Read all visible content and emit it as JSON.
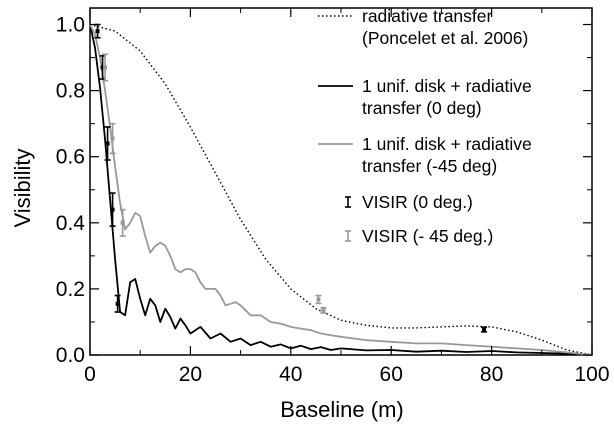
{
  "chart_data": {
    "type": "line",
    "xlabel": "Baseline (m)",
    "ylabel": "Visibility",
    "xlim": [
      0,
      100
    ],
    "ylim": [
      0,
      1.05
    ],
    "grid": false,
    "legend_position": "top-right",
    "x_ticks": [
      {
        "value": 0,
        "label": "0"
      },
      {
        "value": 20,
        "label": "20"
      },
      {
        "value": 40,
        "label": "40"
      },
      {
        "value": 60,
        "label": "60"
      },
      {
        "value": 80,
        "label": "80"
      },
      {
        "value": 100,
        "label": "100"
      }
    ],
    "y_ticks": [
      {
        "value": 0.0,
        "label": "0.0"
      },
      {
        "value": 0.2,
        "label": "0.2"
      },
      {
        "value": 0.4,
        "label": "0.4"
      },
      {
        "value": 0.6,
        "label": "0.6"
      },
      {
        "value": 0.8,
        "label": "0.8"
      },
      {
        "value": 1.0,
        "label": "1.0"
      }
    ],
    "series": [
      {
        "id": "radiative-transfer",
        "legend": [
          "radiative transfer",
          "(Poncelet et al. 2006)"
        ],
        "style": "dotted",
        "color": "#000000",
        "x": [
          0,
          5,
          10,
          15,
          20,
          25,
          30,
          35,
          40,
          45,
          50,
          55,
          60,
          65,
          70,
          75,
          80,
          85,
          90,
          95,
          100
        ],
        "y": [
          1.0,
          0.98,
          0.92,
          0.82,
          0.69,
          0.55,
          0.41,
          0.29,
          0.2,
          0.14,
          0.105,
          0.09,
          0.082,
          0.082,
          0.085,
          0.088,
          0.085,
          0.07,
          0.045,
          0.015,
          0.0
        ]
      },
      {
        "id": "disk-0deg",
        "legend": [
          "1 unif. disk + radiative",
          "transfer (0 deg)"
        ],
        "style": "solid",
        "color": "#000000",
        "x": [
          0,
          1,
          2,
          3,
          4,
          5,
          6,
          7,
          8,
          9,
          10,
          11,
          12,
          13,
          14,
          15,
          16,
          17,
          18,
          19,
          20,
          22,
          24,
          26,
          28,
          30,
          32,
          34,
          36,
          38,
          40,
          42,
          44,
          46,
          48,
          50,
          55,
          60,
          65,
          70,
          75,
          80,
          85,
          90,
          95,
          100
        ],
        "y": [
          1.0,
          0.93,
          0.81,
          0.65,
          0.47,
          0.29,
          0.13,
          0.12,
          0.22,
          0.23,
          0.17,
          0.12,
          0.17,
          0.15,
          0.1,
          0.14,
          0.115,
          0.08,
          0.11,
          0.09,
          0.065,
          0.085,
          0.05,
          0.065,
          0.04,
          0.05,
          0.03,
          0.04,
          0.025,
          0.032,
          0.02,
          0.028,
          0.018,
          0.024,
          0.015,
          0.02,
          0.014,
          0.015,
          0.01,
          0.013,
          0.009,
          0.012,
          0.008,
          0.006,
          0.004,
          0.0
        ]
      },
      {
        "id": "disk-45deg",
        "legend": [
          "1 unif. disk + radiative",
          "transfer (-45 deg)"
        ],
        "style": "solid",
        "color": "#999999",
        "x": [
          0,
          1,
          2,
          3,
          4,
          5,
          6,
          7,
          8,
          9,
          10,
          11,
          12,
          13,
          14,
          15,
          16,
          17,
          18,
          19,
          20,
          21,
          22,
          23,
          24,
          25,
          26,
          27,
          28,
          29,
          30,
          32,
          34,
          36,
          38,
          40,
          42,
          44,
          46,
          48,
          50,
          55,
          60,
          65,
          70,
          75,
          80,
          85,
          90,
          95,
          100
        ],
        "y": [
          1.0,
          0.97,
          0.9,
          0.8,
          0.69,
          0.57,
          0.46,
          0.38,
          0.4,
          0.43,
          0.42,
          0.36,
          0.31,
          0.33,
          0.34,
          0.33,
          0.3,
          0.26,
          0.25,
          0.26,
          0.26,
          0.25,
          0.22,
          0.2,
          0.2,
          0.2,
          0.18,
          0.15,
          0.155,
          0.16,
          0.15,
          0.12,
          0.12,
          0.1,
          0.095,
          0.085,
          0.08,
          0.075,
          0.065,
          0.06,
          0.055,
          0.045,
          0.04,
          0.035,
          0.035,
          0.03,
          0.025,
          0.02,
          0.015,
          0.008,
          0.0
        ]
      }
    ],
    "measurements": [
      {
        "id": "visir-0deg",
        "legend": [
          "VISIR (0 deg.)"
        ],
        "color": "#000000",
        "points": [
          {
            "x": 1.5,
            "y": 0.98,
            "err": 0.02
          },
          {
            "x": 2.5,
            "y": 0.87,
            "err": 0.035
          },
          {
            "x": 3.5,
            "y": 0.64,
            "err": 0.05
          },
          {
            "x": 4.5,
            "y": 0.44,
            "err": 0.05
          },
          {
            "x": 5.5,
            "y": 0.155,
            "err": 0.025
          },
          {
            "x": 78.5,
            "y": 0.077,
            "err": 0.007
          }
        ]
      },
      {
        "id": "visir-45deg",
        "legend": [
          "VISIR (- 45 deg.)"
        ],
        "color": "#999999",
        "points": [
          {
            "x": 3.0,
            "y": 0.87,
            "err": 0.04
          },
          {
            "x": 4.5,
            "y": 0.655,
            "err": 0.045
          },
          {
            "x": 6.5,
            "y": 0.4,
            "err": 0.04
          },
          {
            "x": 45.5,
            "y": 0.168,
            "err": 0.012
          },
          {
            "x": 46.5,
            "y": 0.135,
            "err": 0.008
          }
        ]
      }
    ]
  }
}
